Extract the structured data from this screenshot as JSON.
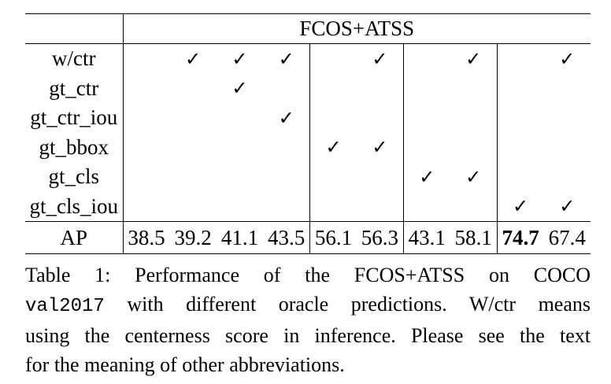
{
  "table": {
    "group_header": "FCOS+ATSS",
    "rows": [
      {
        "label": "w/ctr",
        "marks": [
          "",
          "✓",
          "✓",
          "✓",
          "",
          "✓",
          "",
          "✓",
          "",
          "✓"
        ]
      },
      {
        "label": "gt_ctr",
        "marks": [
          "",
          "",
          "✓",
          "",
          "",
          "",
          "",
          "",
          "",
          ""
        ]
      },
      {
        "label": "gt_ctr_iou",
        "marks": [
          "",
          "",
          "",
          "✓",
          "",
          "",
          "",
          "",
          "",
          ""
        ]
      },
      {
        "label": "gt_bbox",
        "marks": [
          "",
          "",
          "",
          "",
          "✓",
          "✓",
          "",
          "",
          "",
          ""
        ]
      },
      {
        "label": "gt_cls",
        "marks": [
          "",
          "",
          "",
          "",
          "",
          "",
          "✓",
          "✓",
          "",
          ""
        ]
      },
      {
        "label": "gt_cls_iou",
        "marks": [
          "",
          "",
          "",
          "",
          "",
          "",
          "",
          "",
          "✓",
          "✓"
        ]
      }
    ],
    "ap_label": "AP",
    "ap_values": [
      "38.5",
      "39.2",
      "41.1",
      "43.5",
      "56.1",
      "56.3",
      "43.1",
      "58.1",
      "74.7",
      "67.4"
    ],
    "ap_bold_index": 8
  },
  "caption": {
    "line1": "Table 1:  Performance of the FCOS+ATSS on COCO",
    "code": "val2017",
    "line2_rest": " with different oracle predictions.  W/ctr means",
    "line3": "using the centerness score in inference. Please see the text",
    "line4": "for the meaning of other abbreviations."
  }
}
